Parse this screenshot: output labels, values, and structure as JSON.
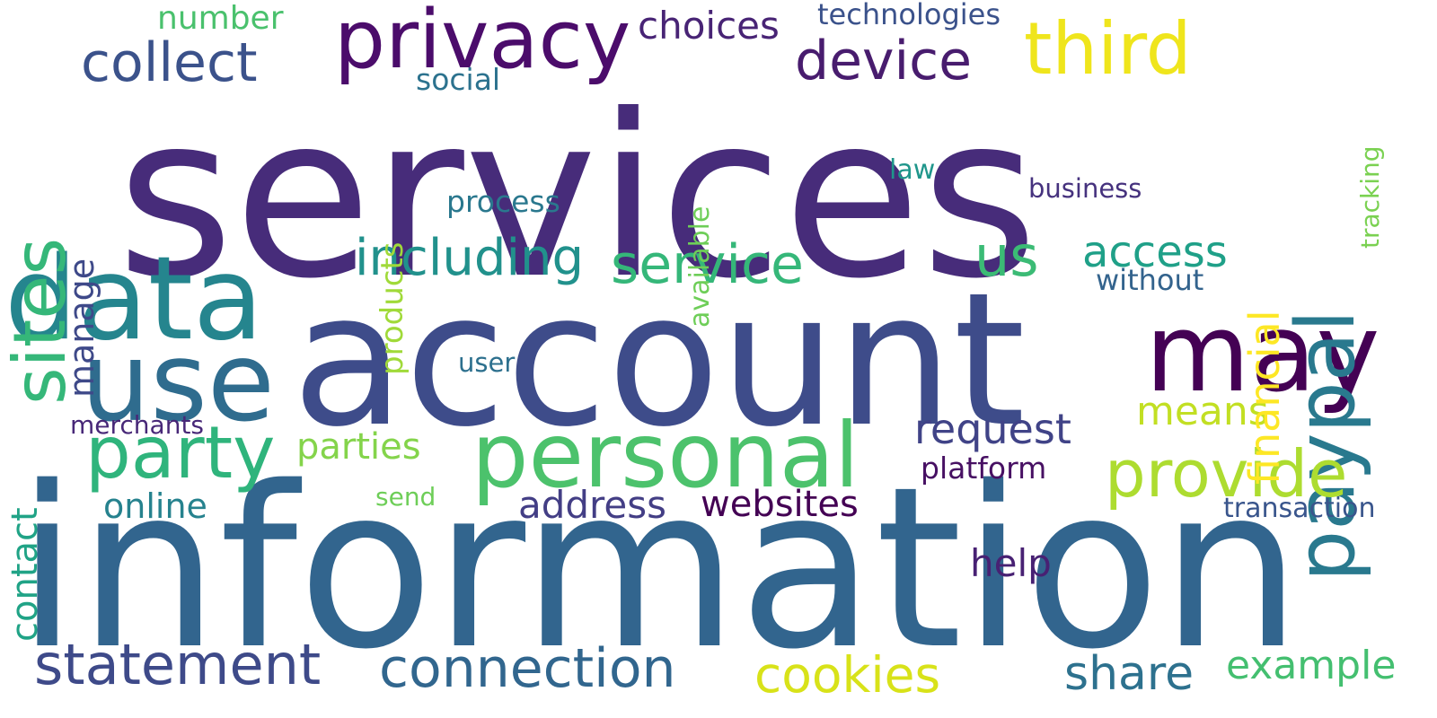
{
  "words": [
    {
      "id": "services",
      "text": "services",
      "color": "#472c7a"
    },
    {
      "id": "account",
      "text": "account",
      "color": "#3e4c8a"
    },
    {
      "id": "information",
      "text": "information",
      "color": "#32658e"
    },
    {
      "id": "data",
      "text": "data",
      "color": "#25858e"
    },
    {
      "id": "use",
      "text": "use",
      "color": "#2f6c8e"
    },
    {
      "id": "privacy",
      "text": "privacy",
      "color": "#4b0c6b"
    },
    {
      "id": "may",
      "text": "may",
      "color": "#440154"
    },
    {
      "id": "personal",
      "text": "personal",
      "color": "#4cc26c"
    },
    {
      "id": "party",
      "text": "party",
      "color": "#2fb47c"
    },
    {
      "id": "sites",
      "text": "sites",
      "color": "#35b779"
    },
    {
      "id": "third",
      "text": "third",
      "color": "#efe51c"
    },
    {
      "id": "paypal",
      "text": "paypal",
      "color": "#29798e"
    },
    {
      "id": "collect",
      "text": "collect",
      "color": "#3b528b"
    },
    {
      "id": "device",
      "text": "device",
      "color": "#481c6e"
    },
    {
      "id": "provide",
      "text": "provide",
      "color": "#addc30"
    },
    {
      "id": "service",
      "text": "service",
      "color": "#35b779"
    },
    {
      "id": "including",
      "text": "including",
      "color": "#21918c"
    },
    {
      "id": "us",
      "text": "us",
      "color": "#3bbb75"
    },
    {
      "id": "access",
      "text": "access",
      "color": "#1fa088"
    },
    {
      "id": "statement",
      "text": "statement",
      "color": "#3e4a89"
    },
    {
      "id": "connection",
      "text": "connection",
      "color": "#31668e"
    },
    {
      "id": "cookies",
      "text": "cookies",
      "color": "#d8e219"
    },
    {
      "id": "share",
      "text": "share",
      "color": "#2d718e"
    },
    {
      "id": "example",
      "text": "example",
      "color": "#44bf70"
    },
    {
      "id": "request",
      "text": "request",
      "color": "#404387"
    },
    {
      "id": "means",
      "text": "means",
      "color": "#c2df23"
    },
    {
      "id": "financial",
      "text": "financial",
      "color": "#fde725"
    },
    {
      "id": "choices",
      "text": "choices",
      "color": "#482475"
    },
    {
      "id": "number",
      "text": "number",
      "color": "#4ac16d"
    },
    {
      "id": "technologies",
      "text": "technologies",
      "color": "#3b528b"
    },
    {
      "id": "social",
      "text": "social",
      "color": "#2c728e"
    },
    {
      "id": "available",
      "text": "available",
      "color": "#6ece58"
    },
    {
      "id": "products",
      "text": "products",
      "color": "#a0da39"
    },
    {
      "id": "tracking",
      "text": "tracking",
      "color": "#7ad151"
    },
    {
      "id": "manage",
      "text": "manage",
      "color": "#3e4989"
    },
    {
      "id": "law",
      "text": "law",
      "color": "#1f968b"
    },
    {
      "id": "business",
      "text": "business",
      "color": "#46327e"
    },
    {
      "id": "process",
      "text": "process",
      "color": "#2a788e"
    },
    {
      "id": "without",
      "text": "without",
      "color": "#33638d"
    },
    {
      "id": "user",
      "text": "user",
      "color": "#2d708e"
    },
    {
      "id": "contact",
      "text": "contact",
      "color": "#20a386"
    },
    {
      "id": "merchants",
      "text": "merchants",
      "color": "#482878"
    },
    {
      "id": "parties",
      "text": "parties",
      "color": "#84d44b"
    },
    {
      "id": "platform",
      "text": "platform",
      "color": "#471063"
    },
    {
      "id": "online",
      "text": "online",
      "color": "#26828e"
    },
    {
      "id": "send",
      "text": "send",
      "color": "#6ece58"
    },
    {
      "id": "address",
      "text": "address",
      "color": "#433e85"
    },
    {
      "id": "websites",
      "text": "websites",
      "color": "#440154"
    },
    {
      "id": "transaction",
      "text": "transaction",
      "color": "#39558c"
    },
    {
      "id": "help",
      "text": "help",
      "color": "#482173"
    }
  ]
}
